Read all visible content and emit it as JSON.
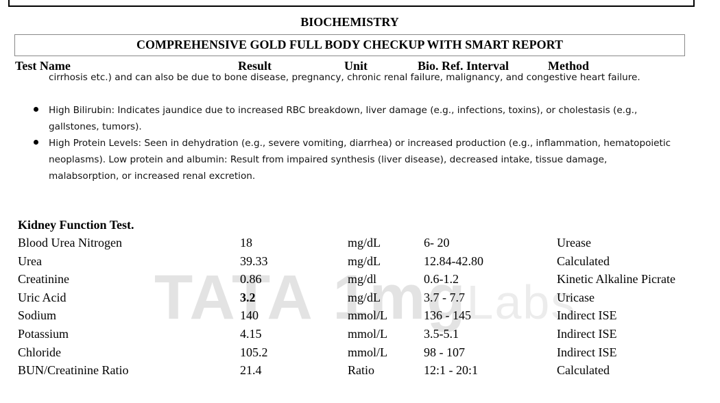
{
  "header": {
    "section_title": "BIOCHEMISTRY",
    "package_title": "COMPREHENSIVE GOLD FULL BODY CHECKUP WITH SMART REPORT",
    "columns": [
      "Test Name",
      "Result",
      "Unit",
      "Bio. Ref. Interval",
      "Method"
    ]
  },
  "notes": {
    "continuation": "cirrhosis etc.) and can also be due to bone disease, pregnancy, chronic renal failure, malignancy, and congestive heart failure.",
    "bullets": [
      "High Bilirubin: Indicates jaundice due to increased RBC breakdown, liver damage (e.g., infections, toxins), or cholestasis (e.g., gallstones, tumors).",
      "High Protein Levels: Seen in dehydration (e.g., severe vomiting, diarrhea) or increased production (e.g., inflammation, hematopoietic neoplasms). Low protein and albumin: Result from impaired synthesis (liver disease), decreased intake, tissue damage, malabsorption, or increased renal excretion."
    ]
  },
  "watermark": {
    "brand": "TATA",
    "mark": "1mg",
    "suffix": "Labs"
  },
  "table": {
    "title": "Kidney Function Test.",
    "rows": [
      [
        "Blood Urea Nitrogen",
        "18",
        "mg/dL",
        "6- 20",
        "Urease"
      ],
      [
        "Urea",
        "39.33",
        "mg/dL",
        "12.84-42.80",
        "Calculated"
      ],
      [
        "Creatinine",
        "0.86",
        "mg/dl",
        "0.6-1.2",
        "Kinetic Alkaline Picrate"
      ],
      [
        "Uric Acid",
        "3.2",
        "mg/dL",
        "3.7 - 7.7",
        "Uricase"
      ],
      [
        "Sodium",
        "140",
        "mmol/L",
        "136 - 145",
        "Indirect ISE"
      ],
      [
        "Potassium",
        "4.15",
        "mmol/L",
        "3.5-5.1",
        "Indirect ISE"
      ],
      [
        "Chloride",
        "105.2",
        "mmol/L",
        "98 - 107",
        "Indirect ISE"
      ],
      [
        "BUN/Creatinine Ratio",
        "21.4",
        "Ratio",
        "12:1 - 20:1",
        "Calculated"
      ]
    ]
  }
}
